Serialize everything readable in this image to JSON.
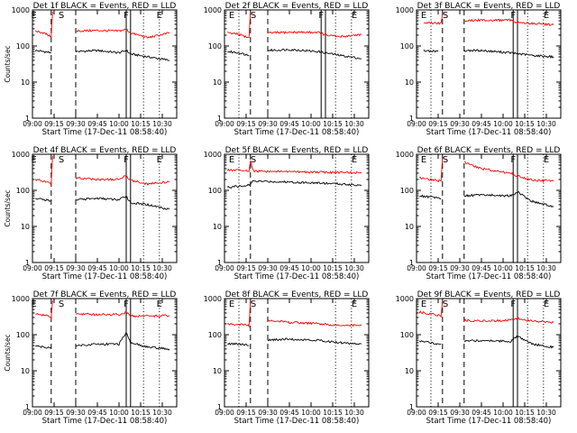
{
  "colors": {
    "events": "#000000",
    "lld": "#ff0000",
    "axes": "#000000",
    "background": "#ffffff"
  },
  "chart_data": [
    {
      "type": "line",
      "title": "Det 1f BLACK = Events, RED = LLD",
      "xlabel": "Start Time (17-Dec-11 08:58:40)",
      "ylabel": "Counts/sec",
      "xlim": [
        "09:00",
        "10:40"
      ],
      "ylim": [
        1,
        1000
      ],
      "yscale": "log",
      "xticks": [
        "09:00",
        "09:15",
        "09:30",
        "09:45",
        "10:00",
        "10:15",
        "10:30"
      ],
      "yticks": [
        "1",
        "10",
        "100",
        "1000"
      ],
      "gap": [
        "09:20",
        "09:30"
      ],
      "dashed_lines": [
        "09:13",
        "09:30"
      ],
      "dotted_lines": [
        "10:17",
        "10:28"
      ],
      "solid_lines": [
        "10:05",
        "10:08"
      ],
      "markers": [
        {
          "label": "E",
          "x": "09:01"
        },
        {
          "label": "S",
          "x": "09:20"
        },
        {
          "label": "F",
          "x": "10:05"
        },
        {
          "label": "E",
          "x": "10:28"
        }
      ],
      "series": [
        {
          "name": "Events",
          "x": [
            "09:02",
            "09:08",
            "09:13",
            "09:30",
            "09:45",
            "10:00",
            "10:05",
            "10:08",
            "10:20",
            "10:35"
          ],
          "values": [
            75,
            70,
            65,
            70,
            75,
            65,
            75,
            60,
            50,
            40
          ]
        },
        {
          "name": "LLD",
          "x": [
            "09:02",
            "09:08",
            "09:13",
            "09:14",
            "09:30",
            "09:45",
            "10:00",
            "10:05",
            "10:08",
            "10:20",
            "10:35"
          ],
          "values": [
            260,
            230,
            180,
            900,
            260,
            270,
            260,
            290,
            230,
            170,
            230
          ]
        }
      ]
    },
    {
      "type": "line",
      "title": "Det 2f BLACK = Events, RED = LLD",
      "xlabel": "Start Time (17-Dec-11 08:58:40)",
      "ylabel": "",
      "xlim": [
        "09:00",
        "10:40"
      ],
      "ylim": [
        1,
        1000
      ],
      "yscale": "log",
      "xticks": [
        "09:00",
        "09:15",
        "09:30",
        "09:45",
        "10:00",
        "10:15",
        "10:30"
      ],
      "yticks": [
        "1",
        "10",
        "100",
        "1000"
      ],
      "gap": [
        "09:20",
        "09:30"
      ],
      "dashed_lines": [
        "09:18",
        "09:30"
      ],
      "dotted_lines": [
        "09:10",
        "10:17",
        "10:28"
      ],
      "solid_lines": [
        "10:07",
        "10:10"
      ],
      "markers": [
        {
          "label": "E",
          "x": "09:05"
        },
        {
          "label": "S",
          "x": "09:20"
        },
        {
          "label": "F",
          "x": "10:07"
        },
        {
          "label": "E",
          "x": "10:30"
        }
      ],
      "series": [
        {
          "name": "Events",
          "x": [
            "09:02",
            "09:10",
            "09:17",
            "09:30",
            "09:45",
            "10:05",
            "10:10",
            "10:20",
            "10:35"
          ],
          "values": [
            70,
            65,
            55,
            75,
            80,
            70,
            65,
            55,
            45
          ]
        },
        {
          "name": "LLD",
          "x": [
            "09:02",
            "09:10",
            "09:17",
            "09:18",
            "09:30",
            "09:45",
            "10:05",
            "10:10",
            "10:20",
            "10:35"
          ],
          "values": [
            230,
            210,
            170,
            900,
            230,
            240,
            240,
            200,
            180,
            210
          ]
        }
      ]
    },
    {
      "type": "line",
      "title": "Det 3f BLACK = Events, RED = LLD",
      "xlabel": "Start Time (17-Dec-11 08:58:40)",
      "ylabel": "",
      "xlim": [
        "09:00",
        "10:40"
      ],
      "ylim": [
        1,
        1000
      ],
      "yscale": "log",
      "xticks": [
        "09:00",
        "09:15",
        "09:30",
        "09:45",
        "10:00",
        "10:15",
        "10:30"
      ],
      "yticks": [
        "1",
        "10",
        "100",
        "1000"
      ],
      "gap": [
        "09:20",
        "09:30"
      ],
      "dashed_lines": [
        "09:18",
        "09:33"
      ],
      "dotted_lines": [
        "09:10",
        "10:17",
        "10:28"
      ],
      "solid_lines": [
        "10:07",
        "10:10"
      ],
      "markers": [
        {
          "label": "E",
          "x": "09:05"
        },
        {
          "label": "S",
          "x": "09:20"
        },
        {
          "label": "F",
          "x": "10:07"
        },
        {
          "label": "E",
          "x": "10:30"
        }
      ],
      "series": [
        {
          "name": "Events",
          "x": [
            "09:05",
            "09:15",
            "09:33",
            "09:45",
            "10:05",
            "10:20",
            "10:35"
          ],
          "values": [
            75,
            70,
            75,
            75,
            65,
            55,
            50
          ]
        },
        {
          "name": "LLD",
          "x": [
            "09:05",
            "09:17",
            "09:18",
            "09:33",
            "09:45",
            "10:05",
            "10:10",
            "10:20",
            "10:35"
          ],
          "values": [
            450,
            420,
            800,
            500,
            520,
            520,
            450,
            420,
            390
          ]
        }
      ]
    },
    {
      "type": "line",
      "title": "Det 4f BLACK = Events, RED = LLD",
      "xlabel": "Start Time (17-Dec-11 08:58:40)",
      "ylabel": "Counts/sec",
      "xlim": [
        "09:00",
        "10:40"
      ],
      "ylim": [
        1,
        1000
      ],
      "yscale": "log",
      "xticks": [
        "09:00",
        "09:15",
        "09:30",
        "09:45",
        "10:00",
        "10:15",
        "10:30"
      ],
      "yticks": [
        "1",
        "10",
        "100",
        "1000"
      ],
      "gap": [
        "09:20",
        "09:30"
      ],
      "dashed_lines": [
        "09:13",
        "09:30"
      ],
      "dotted_lines": [
        "10:17",
        "10:28"
      ],
      "solid_lines": [
        "10:05",
        "10:08"
      ],
      "markers": [
        {
          "label": "E",
          "x": "09:01"
        },
        {
          "label": "S",
          "x": "09:20"
        },
        {
          "label": "F",
          "x": "10:05"
        },
        {
          "label": "E",
          "x": "10:28"
        }
      ],
      "series": [
        {
          "name": "Events",
          "x": [
            "09:02",
            "09:08",
            "09:13",
            "09:30",
            "09:45",
            "10:00",
            "10:05",
            "10:08",
            "10:20",
            "10:35"
          ],
          "values": [
            60,
            55,
            50,
            55,
            60,
            55,
            70,
            45,
            40,
            30
          ]
        },
        {
          "name": "LLD",
          "x": [
            "09:02",
            "09:08",
            "09:13",
            "09:14",
            "09:30",
            "09:45",
            "10:00",
            "10:05",
            "10:08",
            "10:20",
            "10:35"
          ],
          "values": [
            200,
            180,
            150,
            900,
            220,
            200,
            200,
            260,
            190,
            150,
            170
          ]
        }
      ]
    },
    {
      "type": "line",
      "title": "Det 5f BLACK = Events, RED = LLD",
      "xlabel": "Start Time (17-Dec-11 08:58:40)",
      "ylabel": "",
      "xlim": [
        "09:00",
        "10:40"
      ],
      "ylim": [
        1,
        1000
      ],
      "yscale": "log",
      "xticks": [
        "09:00",
        "09:15",
        "09:30",
        "09:45",
        "10:00",
        "10:15",
        "10:30"
      ],
      "yticks": [
        "1",
        "10",
        "100",
        "1000"
      ],
      "gap": [],
      "dashed_lines": [
        "09:18"
      ],
      "dotted_lines": [
        "09:10",
        "10:17",
        "10:28"
      ],
      "solid_lines": [],
      "markers": [
        {
          "label": "E",
          "x": "09:05"
        },
        {
          "label": "S",
          "x": "09:20"
        },
        {
          "label": "E",
          "x": "10:30"
        }
      ],
      "series": [
        {
          "name": "Events",
          "x": [
            "09:02",
            "09:10",
            "09:17",
            "09:20",
            "09:45",
            "10:05",
            "10:20",
            "10:35"
          ],
          "values": [
            120,
            130,
            140,
            180,
            170,
            160,
            150,
            140
          ]
        },
        {
          "name": "LLD",
          "x": [
            "09:02",
            "09:10",
            "09:17",
            "09:18",
            "09:20",
            "09:45",
            "10:05",
            "10:20",
            "10:35"
          ],
          "values": [
            370,
            360,
            340,
            700,
            340,
            330,
            320,
            310,
            320
          ]
        }
      ]
    },
    {
      "type": "line",
      "title": "Det 6f BLACK = Events, RED = LLD",
      "xlabel": "Start Time (17-Dec-11 08:58:40)",
      "ylabel": "",
      "xlim": [
        "09:00",
        "10:40"
      ],
      "ylim": [
        1,
        1000
      ],
      "yscale": "log",
      "xticks": [
        "09:00",
        "09:15",
        "09:30",
        "09:45",
        "10:00",
        "10:15",
        "10:30"
      ],
      "yticks": [
        "1",
        "10",
        "100",
        "1000"
      ],
      "gap": [
        "09:20",
        "09:30"
      ],
      "dashed_lines": [
        "09:18",
        "09:33"
      ],
      "dotted_lines": [
        "09:10",
        "10:17",
        "10:28"
      ],
      "solid_lines": [
        "10:07",
        "10:10"
      ],
      "markers": [
        {
          "label": "E",
          "x": "09:05"
        },
        {
          "label": "S",
          "x": "09:20"
        },
        {
          "label": "F",
          "x": "10:07"
        },
        {
          "label": "E",
          "x": "10:30"
        }
      ],
      "series": [
        {
          "name": "Events",
          "x": [
            "09:02",
            "09:10",
            "09:17",
            "09:33",
            "09:45",
            "10:05",
            "10:10",
            "10:20",
            "10:35"
          ],
          "values": [
            70,
            65,
            60,
            70,
            75,
            70,
            90,
            50,
            35
          ]
        },
        {
          "name": "LLD",
          "x": [
            "09:02",
            "09:10",
            "09:17",
            "09:18",
            "09:33",
            "09:45",
            "10:05",
            "10:10",
            "10:20",
            "10:35"
          ],
          "values": [
            220,
            200,
            180,
            800,
            600,
            400,
            300,
            250,
            190,
            180
          ]
        }
      ]
    },
    {
      "type": "line",
      "title": "Det 7f BLACK = Events, RED = LLD",
      "xlabel": "Start Time (17-Dec-11 08:58:40)",
      "ylabel": "Counts/sec",
      "xlim": [
        "09:00",
        "10:40"
      ],
      "ylim": [
        1,
        1000
      ],
      "yscale": "log",
      "xticks": [
        "09:00",
        "09:15",
        "09:30",
        "09:45",
        "10:00",
        "10:15",
        "10:30"
      ],
      "yticks": [
        "1",
        "10",
        "100",
        "1000"
      ],
      "gap": [
        "09:20",
        "09:30"
      ],
      "dashed_lines": [
        "09:13",
        "09:30"
      ],
      "dotted_lines": [
        "10:17",
        "10:28"
      ],
      "solid_lines": [
        "10:05",
        "10:08"
      ],
      "markers": [
        {
          "label": "E",
          "x": "09:01"
        },
        {
          "label": "S",
          "x": "09:20"
        },
        {
          "label": "F",
          "x": "10:05"
        },
        {
          "label": "E",
          "x": "10:28"
        }
      ],
      "series": [
        {
          "name": "Events",
          "x": [
            "09:02",
            "09:08",
            "09:13",
            "09:30",
            "09:45",
            "10:00",
            "10:05",
            "10:08",
            "10:20",
            "10:35"
          ],
          "values": [
            50,
            45,
            45,
            50,
            55,
            55,
            110,
            60,
            45,
            40
          ]
        },
        {
          "name": "LLD",
          "x": [
            "09:02",
            "09:08",
            "09:13",
            "09:14",
            "09:30",
            "09:45",
            "10:00",
            "10:05",
            "10:08",
            "10:20",
            "10:35"
          ],
          "values": [
            380,
            350,
            300,
            900,
            380,
            360,
            360,
            420,
            330,
            320,
            340
          ]
        }
      ]
    },
    {
      "type": "line",
      "title": "Det 8f BLACK = Events, RED = LLD",
      "xlabel": "Start Time (17-Dec-11 08:58:40)",
      "ylabel": "",
      "xlim": [
        "09:00",
        "10:40"
      ],
      "ylim": [
        1,
        1000
      ],
      "yscale": "log",
      "xticks": [
        "09:00",
        "09:15",
        "09:30",
        "09:45",
        "10:00",
        "10:15",
        "10:30"
      ],
      "yticks": [
        "1",
        "10",
        "100",
        "1000"
      ],
      "gap": [
        "09:20",
        "09:30"
      ],
      "dashed_lines": [
        "09:18",
        "09:30"
      ],
      "dotted_lines": [
        "09:10",
        "10:17",
        "10:28"
      ],
      "solid_lines": [],
      "markers": [
        {
          "label": "E",
          "x": "09:05"
        },
        {
          "label": "S",
          "x": "09:20"
        },
        {
          "label": "E",
          "x": "10:30"
        }
      ],
      "series": [
        {
          "name": "Events",
          "x": [
            "09:02",
            "09:10",
            "09:17",
            "09:30",
            "09:45",
            "10:05",
            "10:20",
            "10:35"
          ],
          "values": [
            55,
            55,
            50,
            70,
            75,
            70,
            60,
            55
          ]
        },
        {
          "name": "LLD",
          "x": [
            "09:02",
            "09:10",
            "09:17",
            "09:18",
            "09:30",
            "09:45",
            "10:05",
            "10:20",
            "10:35"
          ],
          "values": [
            200,
            190,
            180,
            900,
            250,
            220,
            200,
            180,
            180
          ]
        }
      ]
    },
    {
      "type": "line",
      "title": "Det 9f BLACK = Events, RED = LLD",
      "xlabel": "Start Time (17-Dec-11 08:58:40)",
      "ylabel": "",
      "xlim": [
        "09:00",
        "10:40"
      ],
      "ylim": [
        1,
        1000
      ],
      "yscale": "log",
      "xticks": [
        "09:00",
        "09:15",
        "09:30",
        "09:45",
        "10:00",
        "10:15",
        "10:30"
      ],
      "yticks": [
        "1",
        "10",
        "100",
        "1000"
      ],
      "gap": [
        "09:20",
        "09:30"
      ],
      "dashed_lines": [
        "09:18",
        "09:33"
      ],
      "dotted_lines": [
        "09:10",
        "10:17",
        "10:28"
      ],
      "solid_lines": [
        "10:07",
        "10:10"
      ],
      "markers": [
        {
          "label": "E",
          "x": "09:05"
        },
        {
          "label": "S",
          "x": "09:20"
        },
        {
          "label": "F",
          "x": "10:07"
        },
        {
          "label": "E",
          "x": "10:30"
        }
      ],
      "series": [
        {
          "name": "Events",
          "x": [
            "09:02",
            "09:10",
            "09:17",
            "09:33",
            "09:45",
            "10:05",
            "10:10",
            "10:20",
            "10:35"
          ],
          "values": [
            65,
            60,
            55,
            65,
            70,
            65,
            90,
            55,
            45
          ]
        },
        {
          "name": "LLD",
          "x": [
            "09:02",
            "09:10",
            "09:17",
            "09:18",
            "09:33",
            "09:45",
            "10:05",
            "10:10",
            "10:20",
            "10:35"
          ],
          "values": [
            420,
            380,
            330,
            900,
            250,
            240,
            250,
            280,
            240,
            220
          ]
        }
      ]
    }
  ]
}
